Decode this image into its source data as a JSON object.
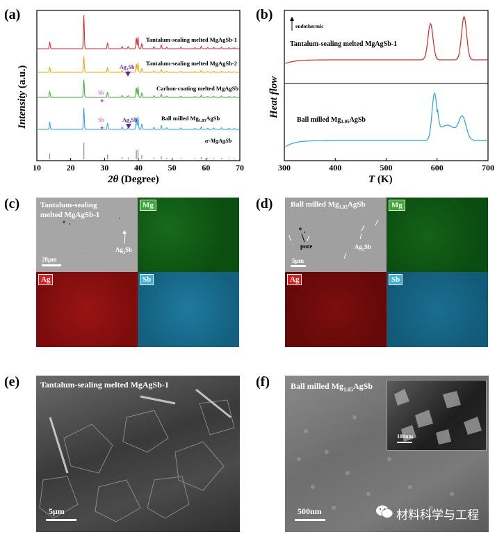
{
  "panels": {
    "a": "(a)",
    "b": "(b)",
    "c": "(c)",
    "d": "(d)",
    "e": "(e)",
    "f": "(f)"
  },
  "chart_data": [
    {
      "type": "line",
      "panel": "a",
      "title": "",
      "xlabel": "2θ (Degree)",
      "ylabel": "Intensity (a.u.)",
      "xlim": [
        10,
        70
      ],
      "xticks": [
        10,
        20,
        30,
        40,
        50,
        60,
        70
      ],
      "series": [
        {
          "name": "Tantalum-sealing melted MgAgSb-1",
          "color": "#e02020"
        },
        {
          "name": "Tantalum-sealing melted MgAgSb-2",
          "color": "#f0a000"
        },
        {
          "name": "Carbon-coating melted MgAgSb",
          "color": "#3aaa35"
        },
        {
          "name": "Ball milled Mg1.05AgSb",
          "color": "#2aa0dc"
        },
        {
          "name": "α-MgAgSb",
          "color": "#888888"
        }
      ],
      "annotations": [
        "Ag3Sb",
        "Sb",
        "Sb",
        "Ag3Sb"
      ]
    },
    {
      "type": "line",
      "panel": "b",
      "xlabel": "T (K)",
      "ylabel": "Heat flow",
      "xlim": [
        300,
        700
      ],
      "xticks": [
        300,
        400,
        500,
        600,
        700
      ],
      "annotation": "endothermic",
      "series": [
        {
          "name": "Tantalum-sealing melted MgAgSb-1",
          "color": "#e02020",
          "peaks_K": [
            587,
            653
          ]
        },
        {
          "name": "Ball milled Mg1.05AgSb",
          "color": "#2aa0dc",
          "peaks_K": [
            595,
            650
          ]
        }
      ]
    }
  ],
  "xrd": {
    "xlabel_italic": "2θ",
    "xlabel_rest": " (Degree)",
    "ylabel": "Intensity",
    "ylabel_rest": " (a.u.)",
    "ticks": [
      "10",
      "20",
      "30",
      "40",
      "50",
      "60",
      "70"
    ],
    "labels": {
      "ta1": "Tantalum-sealing melted MgAgSb-1",
      "ta2": "Tantalum-sealing melted MgAgSb-2",
      "cc": "Carbon-coating melted MgAgSb",
      "bm": "Ball milled Mg",
      "bm_sub": "1.05",
      "bm_tail": "AgSb",
      "ref": "α-MgAgSb",
      "ag3sb_1": "Ag",
      "ag3sb_1_sub": "3",
      "ag3sb_1_tail": "Sb",
      "ag3sb_2": "Ag",
      "ag3sb_2_sub": "3",
      "ag3sb_2_tail": "Sb",
      "sb_1": "Sb",
      "sb_2": "Sb"
    }
  },
  "dsc": {
    "xlabel_italic": "T",
    "xlabel_rest": " (K)",
    "ylabel": "Heat flow",
    "ticks": [
      "300",
      "400",
      "500",
      "600",
      "700"
    ],
    "endo": "endothermic",
    "ta": "Tantalum-sealing melted MgAgSb-1",
    "bm": "Ball milled Mg",
    "bm_sub": "1.05",
    "bm_tail": "AgSb"
  },
  "eds_c": {
    "title_line1": "Tantalum-sealing",
    "title_line2": "melted MgAgSb-1",
    "ag3sb": "Ag",
    "ag3sb_sub": "3",
    "ag3sb_tail": "Sb",
    "scale": "20μm",
    "mg": "Mg",
    "ag": "Ag",
    "sb": "Sb"
  },
  "eds_d": {
    "title": "Ball milled Mg",
    "title_sub": "1.05",
    "title_tail": "AgSb",
    "pore": "pore",
    "ag3sb": "Ag",
    "ag3sb_sub": "3",
    "ag3sb_tail": "Sb",
    "scale": "5μm",
    "mg": "Mg",
    "ag": "Ag",
    "sb": "Sb"
  },
  "sem_e": {
    "title": "Tantalum-sealing melted MgAgSb-1",
    "scale": "5μm"
  },
  "sem_f": {
    "title": "Ball milled Mg",
    "title_sub": "1.05",
    "title_tail": "AgSb",
    "inset_scale": "100nm",
    "scale": "500nm",
    "watermark": "材料科学与工程"
  },
  "colors": {
    "red": "#e02020",
    "orange": "#f0a000",
    "green": "#3aaa35",
    "blue": "#2aa0dc",
    "mgMap": "#0e5a12",
    "agMap": "#8c0f0f",
    "sbMap": "#1a6c8e"
  }
}
